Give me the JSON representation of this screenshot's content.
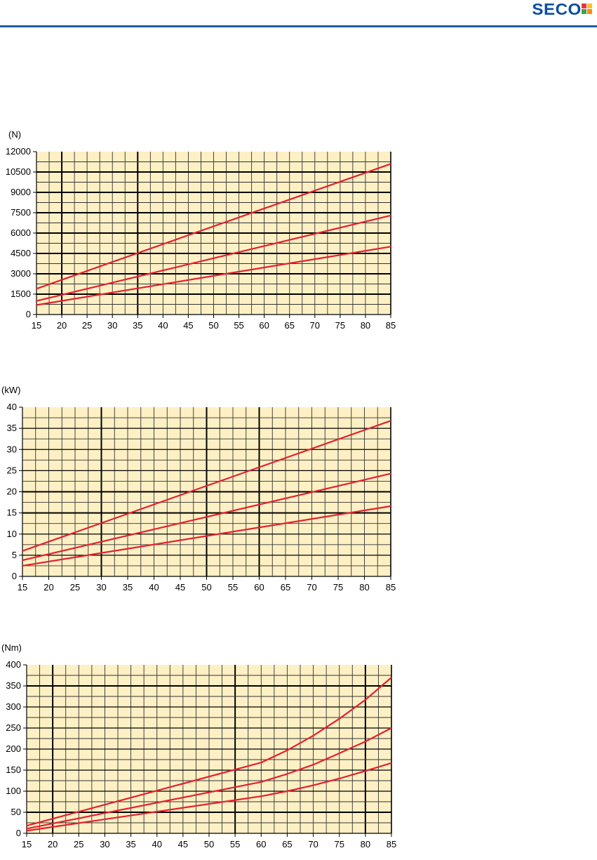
{
  "brand": {
    "name": "SECO",
    "rule_color": "#1f5ea8",
    "logo_color": "#0b4ea2",
    "logo_squares": [
      "#e53935",
      "#fbc02d",
      "#43a047",
      "#fb8c00"
    ]
  },
  "style": {
    "plot_background": "#fdf0c4",
    "line_color": "#e5202e",
    "grid_minor_color": "#333333",
    "grid_major_color": "#000000"
  },
  "chart_data": [
    {
      "type": "line",
      "ylabel": "(N)",
      "xlim": [
        15,
        85
      ],
      "ylim": [
        0,
        12000
      ],
      "x_ticks": [
        15,
        20,
        25,
        30,
        35,
        40,
        45,
        50,
        55,
        60,
        65,
        70,
        75,
        80,
        85
      ],
      "y_ticks": [
        0,
        1500,
        3000,
        4500,
        6000,
        7500,
        9000,
        10500,
        12000
      ],
      "major_x": [
        20,
        35,
        85
      ],
      "major_y": [],
      "series": [
        {
          "x": [
            15,
            85
          ],
          "y": [
            1900,
            11100
          ]
        },
        {
          "x": [
            15,
            85
          ],
          "y": [
            1000,
            7300
          ]
        },
        {
          "x": [
            15,
            85
          ],
          "y": [
            700,
            5000
          ]
        }
      ]
    },
    {
      "type": "line",
      "ylabel": "(kW)",
      "xlim": [
        15,
        85
      ],
      "ylim": [
        0,
        40
      ],
      "x_ticks": [
        15,
        20,
        25,
        30,
        35,
        40,
        45,
        50,
        55,
        60,
        65,
        70,
        75,
        80,
        85
      ],
      "y_ticks": [
        0,
        5,
        10,
        15,
        20,
        25,
        30,
        35,
        40
      ],
      "major_x": [
        30,
        50,
        60
      ],
      "major_y": [
        15,
        20
      ],
      "series": [
        {
          "x": [
            15,
            85
          ],
          "y": [
            6,
            36.8
          ]
        },
        {
          "x": [
            15,
            85
          ],
          "y": [
            3.8,
            24.3
          ]
        },
        {
          "x": [
            15,
            85
          ],
          "y": [
            2.5,
            16.6
          ]
        }
      ]
    },
    {
      "type": "line",
      "ylabel": "(Nm)",
      "xlim": [
        15,
        85
      ],
      "ylim": [
        0,
        400
      ],
      "x_ticks": [
        15,
        20,
        25,
        30,
        35,
        40,
        45,
        50,
        55,
        60,
        65,
        70,
        75,
        80,
        85
      ],
      "y_ticks": [
        0,
        50,
        100,
        150,
        200,
        250,
        300,
        350,
        400
      ],
      "major_x": [
        20,
        55,
        80
      ],
      "major_y": [
        50,
        350
      ],
      "series": [
        {
          "x": [
            15,
            60,
            65,
            70,
            75,
            80,
            85
          ],
          "y": [
            18,
            168,
            197,
            232,
            272,
            317,
            370
          ]
        },
        {
          "x": [
            15,
            60,
            65,
            70,
            75,
            80,
            85
          ],
          "y": [
            11,
            122,
            141,
            163,
            190,
            218,
            250
          ]
        },
        {
          "x": [
            15,
            60,
            65,
            70,
            75,
            80,
            85
          ],
          "y": [
            6,
            88,
            100,
            114,
            130,
            148,
            167
          ]
        }
      ]
    }
  ]
}
